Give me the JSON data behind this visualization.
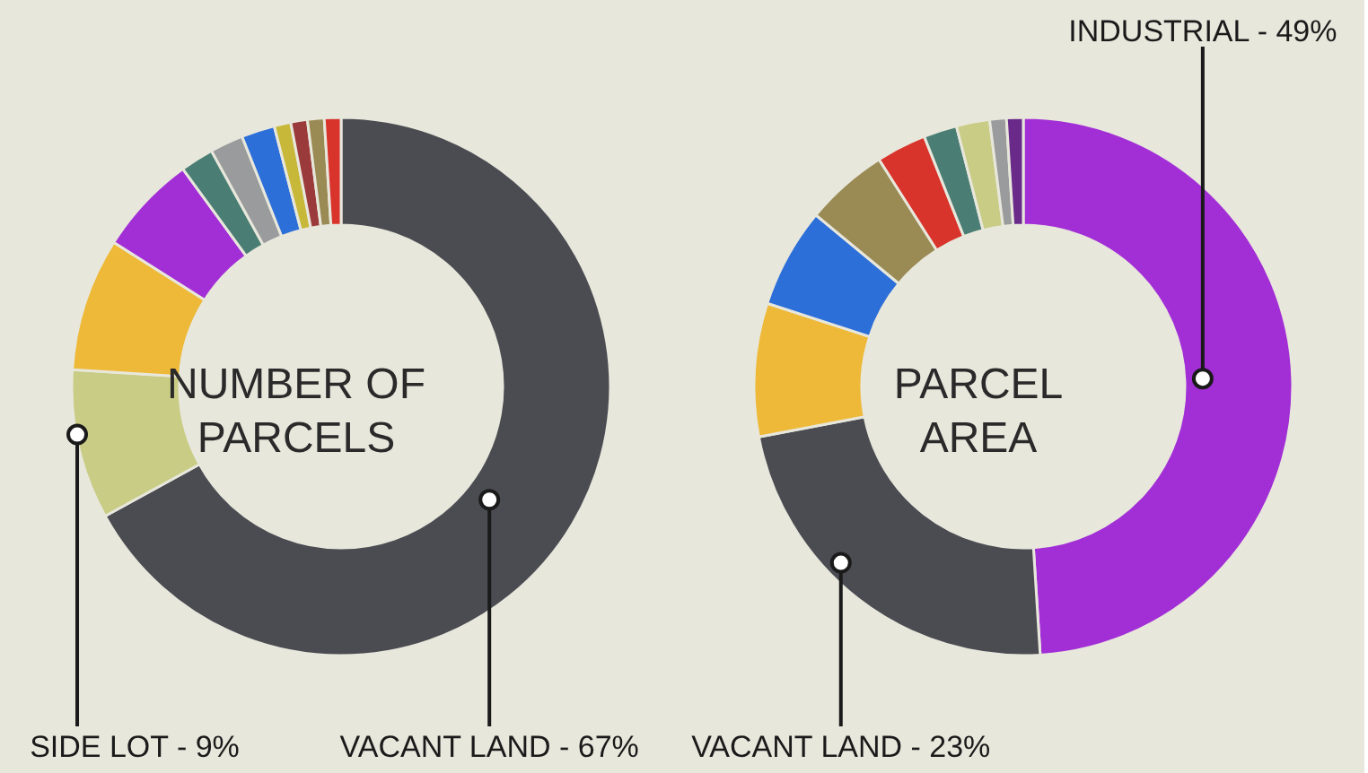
{
  "chart_data": [
    {
      "type": "donut",
      "title": "NUMBER OF PARCELS",
      "categories": [
        "VACANT LAND",
        "SIDE LOT",
        null,
        null,
        null,
        null,
        null,
        null,
        null,
        null,
        null
      ],
      "values": [
        67,
        9,
        8,
        6,
        2,
        2,
        2,
        1,
        1,
        1,
        1
      ],
      "colors": [
        "#4a4c52",
        "#c9cc85",
        "#eeb938",
        "#a22fd6",
        "#4a7e74",
        "#9a9b9c",
        "#2c6fd8",
        "#c8b83a",
        "#9b3a3a",
        "#9a8b55",
        "#d8342c"
      ],
      "value_labels": [
        "67%",
        "9%",
        null,
        null,
        null,
        null,
        null,
        null,
        null,
        null,
        null
      ],
      "legend": false
    },
    {
      "type": "donut",
      "title": "PARCEL AREA",
      "categories": [
        "INDUSTRIAL",
        "VACANT LAND",
        null,
        null,
        null,
        null,
        null,
        null,
        null,
        null
      ],
      "values": [
        49,
        23,
        8,
        6,
        5,
        3,
        2,
        2,
        1,
        1
      ],
      "colors": [
        "#a22fd6",
        "#4a4c52",
        "#eeb938",
        "#2c6fd8",
        "#9a8b55",
        "#d8342c",
        "#4a7e74",
        "#c9cc85",
        "#9a9b9c",
        "#6a2a8a"
      ],
      "value_labels": [
        "49%",
        "23%",
        null,
        null,
        null,
        null,
        null,
        null,
        null,
        null
      ],
      "legend": false
    }
  ]
}
